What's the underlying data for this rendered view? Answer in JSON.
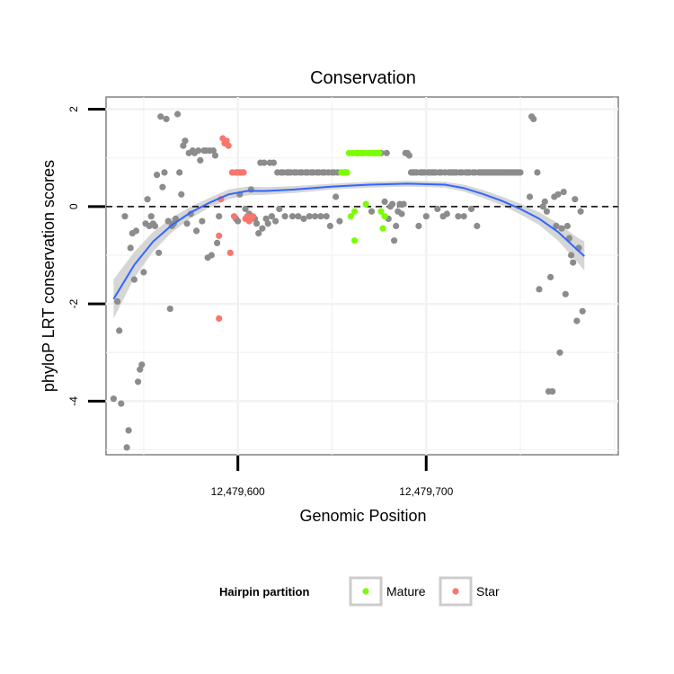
{
  "chart_data": {
    "type": "scatter",
    "title": "Conservation",
    "xlabel": "Genomic Position",
    "ylabel": "phyloP LRT conservation scores",
    "xlim": [
      12479530,
      12479802
    ],
    "ylim": [
      -5.1,
      2.25
    ],
    "x_ticks": [
      {
        "value": 12479600,
        "label": "12,479,600"
      },
      {
        "value": 12479700,
        "label": "12,479,700"
      }
    ],
    "y_ticks": [
      {
        "value": 2,
        "label": "2"
      },
      {
        "value": 0,
        "label": "0"
      },
      {
        "value": -2,
        "label": "-2"
      },
      {
        "value": -4,
        "label": "-4"
      }
    ],
    "reference_line": {
      "y": 0,
      "style": "dashed"
    },
    "grid": true,
    "legend": {
      "title": "Hairpin partition",
      "placement": "bottom",
      "entries": [
        {
          "label": "Mature",
          "color": "#7CFC00"
        },
        {
          "label": "Star",
          "color": "#F8766D"
        }
      ]
    },
    "colors": {
      "other": "#8c8c8c",
      "mature": "#7CFC00",
      "star": "#F8766D",
      "smooth": "#3366FF",
      "band": "#cccccc"
    },
    "series": [
      {
        "group": "other",
        "points": [
          [
            12479534,
            -3.95
          ],
          [
            12479536,
            -1.95
          ],
          [
            12479537,
            -2.55
          ],
          [
            12479538,
            -4.05
          ],
          [
            12479540,
            -0.2
          ],
          [
            12479541,
            -4.95
          ],
          [
            12479542,
            -4.6
          ],
          [
            12479543,
            -0.85
          ],
          [
            12479544,
            -0.55
          ],
          [
            12479545,
            -1.5
          ],
          [
            12479546,
            -0.5
          ],
          [
            12479547,
            -3.6
          ],
          [
            12479548,
            -3.35
          ],
          [
            12479549,
            -3.25
          ],
          [
            12479550,
            -1.35
          ],
          [
            12479551,
            -0.35
          ],
          [
            12479552,
            0.15
          ],
          [
            12479553,
            -0.4
          ],
          [
            12479554,
            -0.2
          ],
          [
            12479555,
            -0.35
          ],
          [
            12479556,
            -0.4
          ],
          [
            12479557,
            0.65
          ],
          [
            12479558,
            -0.95
          ],
          [
            12479559,
            1.85
          ],
          [
            12479560,
            0.4
          ],
          [
            12479561,
            0.7
          ],
          [
            12479562,
            1.8
          ],
          [
            12479563,
            -0.3
          ],
          [
            12479564,
            -2.1
          ],
          [
            12479565,
            -0.4
          ],
          [
            12479566,
            -0.35
          ],
          [
            12479567,
            -0.25
          ],
          [
            12479568,
            1.9
          ],
          [
            12479569,
            0.7
          ],
          [
            12479570,
            0.25
          ],
          [
            12479571,
            1.25
          ],
          [
            12479572,
            1.35
          ],
          [
            12479573,
            -0.35
          ],
          [
            12479574,
            1.1
          ],
          [
            12479575,
            -0.15
          ],
          [
            12479576,
            1.15
          ],
          [
            12479577,
            1.1
          ],
          [
            12479578,
            -0.5
          ],
          [
            12479579,
            1.15
          ],
          [
            12479580,
            0.95
          ],
          [
            12479581,
            -0.3
          ],
          [
            12479582,
            1.15
          ],
          [
            12479583,
            1.15
          ],
          [
            12479584,
            -1.05
          ],
          [
            12479585,
            1.15
          ],
          [
            12479586,
            -1.0
          ],
          [
            12479587,
            1.15
          ],
          [
            12479588,
            1.05
          ],
          [
            12479589,
            -0.75
          ],
          [
            12479590,
            -0.2
          ],
          [
            12479599,
            -0.25
          ],
          [
            12479600,
            -0.3
          ],
          [
            12479601,
            0.25
          ],
          [
            12479604,
            -0.05
          ],
          [
            12479606,
            -0.15
          ],
          [
            12479607,
            0.35
          ],
          [
            12479609,
            -0.25
          ],
          [
            12479610,
            -0.35
          ],
          [
            12479611,
            -0.55
          ],
          [
            12479612,
            0.9
          ],
          [
            12479613,
            -0.45
          ],
          [
            12479614,
            0.9
          ],
          [
            12479615,
            -0.25
          ],
          [
            12479616,
            -0.35
          ],
          [
            12479617,
            0.9
          ],
          [
            12479618,
            -0.2
          ],
          [
            12479619,
            0.9
          ],
          [
            12479620,
            -0.3
          ],
          [
            12479621,
            0.7
          ],
          [
            12479622,
            -0.05
          ],
          [
            12479623,
            0.7
          ],
          [
            12479624,
            0.7
          ],
          [
            12479625,
            -0.2
          ],
          [
            12479626,
            0.7
          ],
          [
            12479627,
            0.7
          ],
          [
            12479628,
            0.7
          ],
          [
            12479629,
            -0.2
          ],
          [
            12479630,
            0.7
          ],
          [
            12479631,
            0.7
          ],
          [
            12479632,
            -0.2
          ],
          [
            12479633,
            0.7
          ],
          [
            12479634,
            0.7
          ],
          [
            12479635,
            -0.25
          ],
          [
            12479636,
            0.7
          ],
          [
            12479637,
            0.7
          ],
          [
            12479638,
            -0.2
          ],
          [
            12479639,
            0.7
          ],
          [
            12479640,
            0.7
          ],
          [
            12479641,
            -0.2
          ],
          [
            12479642,
            0.7
          ],
          [
            12479643,
            0.7
          ],
          [
            12479644,
            -0.2
          ],
          [
            12479645,
            0.7
          ],
          [
            12479646,
            0.7
          ],
          [
            12479647,
            -0.2
          ],
          [
            12479648,
            0.7
          ],
          [
            12479649,
            -0.4
          ],
          [
            12479650,
            0.7
          ],
          [
            12479651,
            0.7
          ],
          [
            12479652,
            0.2
          ],
          [
            12479653,
            0.7
          ],
          [
            12479654,
            -0.3
          ],
          [
            12479657,
            0.7
          ],
          [
            12479663,
            1.1
          ],
          [
            12479671,
            -0.1
          ],
          [
            12479676,
            1.1
          ],
          [
            12479678,
            0.1
          ],
          [
            12479679,
            1.1
          ],
          [
            12479680,
            -0.25
          ],
          [
            12479681,
            0.0
          ],
          [
            12479682,
            0.05
          ],
          [
            12479683,
            -0.7
          ],
          [
            12479684,
            -0.4
          ],
          [
            12479685,
            -0.1
          ],
          [
            12479686,
            0.05
          ],
          [
            12479687,
            -0.15
          ],
          [
            12479688,
            0.05
          ],
          [
            12479689,
            1.1
          ],
          [
            12479690,
            1.1
          ],
          [
            12479691,
            1.05
          ],
          [
            12479692,
            0.7
          ],
          [
            12479693,
            0.7
          ],
          [
            12479694,
            0.7
          ],
          [
            12479695,
            0.7
          ],
          [
            12479696,
            -0.4
          ],
          [
            12479697,
            0.7
          ],
          [
            12479698,
            0.7
          ],
          [
            12479699,
            0.7
          ],
          [
            12479700,
            -0.2
          ],
          [
            12479701,
            0.7
          ],
          [
            12479702,
            0.7
          ],
          [
            12479703,
            0.7
          ],
          [
            12479704,
            0.7
          ],
          [
            12479705,
            0.7
          ],
          [
            12479706,
            -0.05
          ],
          [
            12479707,
            0.7
          ],
          [
            12479708,
            0.7
          ],
          [
            12479709,
            -0.2
          ],
          [
            12479710,
            0.7
          ],
          [
            12479711,
            -0.15
          ],
          [
            12479712,
            0.7
          ],
          [
            12479713,
            0.7
          ],
          [
            12479714,
            0.7
          ],
          [
            12479715,
            0.7
          ],
          [
            12479716,
            0.7
          ],
          [
            12479717,
            -0.2
          ],
          [
            12479718,
            0.7
          ],
          [
            12479719,
            0.7
          ],
          [
            12479720,
            -0.2
          ],
          [
            12479721,
            0.7
          ],
          [
            12479722,
            0.7
          ],
          [
            12479723,
            0.7
          ],
          [
            12479724,
            -0.05
          ],
          [
            12479725,
            0.7
          ],
          [
            12479726,
            0.7
          ],
          [
            12479727,
            -0.4
          ],
          [
            12479728,
            0.7
          ],
          [
            12479729,
            0.7
          ],
          [
            12479730,
            0.7
          ],
          [
            12479731,
            0.7
          ],
          [
            12479732,
            0.7
          ],
          [
            12479733,
            0.7
          ],
          [
            12479734,
            0.7
          ],
          [
            12479735,
            0.7
          ],
          [
            12479736,
            0.7
          ],
          [
            12479737,
            0.7
          ],
          [
            12479738,
            0.7
          ],
          [
            12479739,
            0.7
          ],
          [
            12479740,
            0.7
          ],
          [
            12479741,
            0.7
          ],
          [
            12479742,
            0.7
          ],
          [
            12479743,
            0.7
          ],
          [
            12479744,
            0.7
          ],
          [
            12479745,
            0.7
          ],
          [
            12479746,
            0.7
          ],
          [
            12479747,
            0.7
          ],
          [
            12479748,
            0.7
          ],
          [
            12479749,
            0.7
          ],
          [
            12479750,
            0.7
          ],
          [
            12479755,
            0.2
          ],
          [
            12479756,
            1.85
          ],
          [
            12479757,
            1.8
          ],
          [
            12479759,
            0.7
          ],
          [
            12479760,
            -1.7
          ],
          [
            12479762,
            0.0
          ],
          [
            12479763,
            0.1
          ],
          [
            12479764,
            -0.1
          ],
          [
            12479765,
            -3.8
          ],
          [
            12479766,
            -1.45
          ],
          [
            12479767,
            -3.8
          ],
          [
            12479768,
            0.2
          ],
          [
            12479769,
            -0.4
          ],
          [
            12479770,
            0.25
          ],
          [
            12479771,
            -3.0
          ],
          [
            12479772,
            -0.45
          ],
          [
            12479773,
            0.3
          ],
          [
            12479774,
            -1.8
          ],
          [
            12479775,
            -0.4
          ],
          [
            12479776,
            -0.65
          ],
          [
            12479777,
            -1.0
          ],
          [
            12479778,
            -1.15
          ],
          [
            12479779,
            0.15
          ],
          [
            12479780,
            -2.35
          ],
          [
            12479781,
            -0.85
          ],
          [
            12479782,
            -0.1
          ],
          [
            12479783,
            -2.15
          ]
        ]
      },
      {
        "group": "star",
        "points": [
          [
            12479590,
            -0.6
          ],
          [
            12479590,
            -2.3
          ],
          [
            12479591,
            0.15
          ],
          [
            12479592,
            1.4
          ],
          [
            12479593,
            1.3
          ],
          [
            12479594,
            1.35
          ],
          [
            12479595,
            1.25
          ],
          [
            12479596,
            -0.95
          ],
          [
            12479597,
            0.7
          ],
          [
            12479598,
            -0.2
          ],
          [
            12479599,
            0.7
          ],
          [
            12479600,
            0.7
          ],
          [
            12479601,
            0.7
          ],
          [
            12479602,
            0.7
          ],
          [
            12479603,
            0.7
          ],
          [
            12479604,
            -0.25
          ],
          [
            12479605,
            -0.2
          ],
          [
            12479606,
            -0.3
          ],
          [
            12479607,
            -0.25
          ],
          [
            12479608,
            -0.2
          ]
        ]
      },
      {
        "group": "mature",
        "points": [
          [
            12479655,
            0.7
          ],
          [
            12479656,
            0.7
          ],
          [
            12479657,
            0.7
          ],
          [
            12479658,
            0.7
          ],
          [
            12479659,
            1.1
          ],
          [
            12479660,
            -0.2
          ],
          [
            12479661,
            1.1
          ],
          [
            12479662,
            -0.1
          ],
          [
            12479662,
            -0.7
          ],
          [
            12479663,
            1.1
          ],
          [
            12479664,
            1.1
          ],
          [
            12479665,
            1.1
          ],
          [
            12479666,
            1.1
          ],
          [
            12479667,
            1.1
          ],
          [
            12479668,
            0.05
          ],
          [
            12479669,
            1.1
          ],
          [
            12479670,
            1.1
          ],
          [
            12479671,
            1.1
          ],
          [
            12479672,
            1.1
          ],
          [
            12479673,
            1.1
          ],
          [
            12479674,
            1.1
          ],
          [
            12479675,
            1.1
          ],
          [
            12479676,
            -0.1
          ],
          [
            12479677,
            -0.45
          ],
          [
            12479678,
            -0.2
          ]
        ]
      }
    ],
    "smooth_line": {
      "x": [
        12479534,
        12479545,
        12479555,
        12479565,
        12479575,
        12479585,
        12479595,
        12479605,
        12479615,
        12479630,
        12479650,
        12479670,
        12479690,
        12479710,
        12479720,
        12479730,
        12479740,
        12479750,
        12479760,
        12479770,
        12479780,
        12479784
      ],
      "y": [
        -1.9,
        -1.2,
        -0.72,
        -0.38,
        -0.12,
        0.08,
        0.25,
        0.32,
        0.32,
        0.35,
        0.41,
        0.45,
        0.47,
        0.45,
        0.38,
        0.26,
        0.12,
        -0.05,
        -0.25,
        -0.52,
        -0.88,
        -1.02
      ]
    },
    "confidence_band": {
      "x": [
        12479534,
        12479545,
        12479555,
        12479565,
        12479575,
        12479585,
        12479595,
        12479605,
        12479615,
        12479630,
        12479650,
        12479670,
        12479690,
        12479710,
        12479720,
        12479730,
        12479740,
        12479750,
        12479760,
        12479770,
        12479780,
        12479784
      ],
      "lower": [
        -2.3,
        -1.47,
        -0.92,
        -0.53,
        -0.24,
        -0.02,
        0.15,
        0.23,
        0.24,
        0.28,
        0.35,
        0.39,
        0.41,
        0.39,
        0.31,
        0.18,
        0.03,
        -0.16,
        -0.38,
        -0.7,
        -1.13,
        -1.32
      ],
      "upper": [
        -1.5,
        -0.93,
        -0.52,
        -0.23,
        0.0,
        0.18,
        0.35,
        0.41,
        0.4,
        0.42,
        0.47,
        0.51,
        0.53,
        0.51,
        0.45,
        0.34,
        0.21,
        0.06,
        -0.12,
        -0.34,
        -0.63,
        -0.72
      ]
    }
  }
}
